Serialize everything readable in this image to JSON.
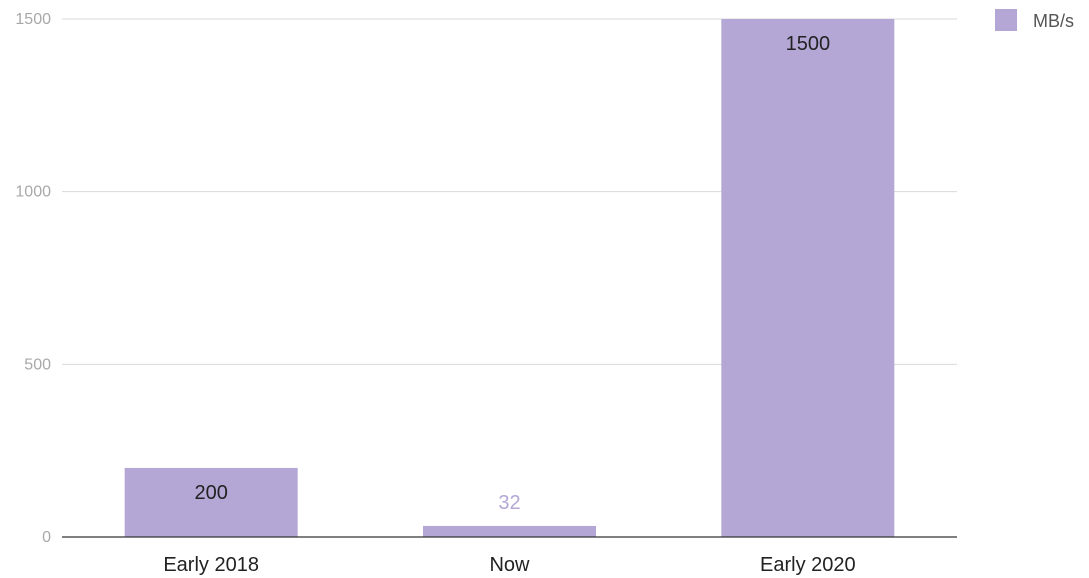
{
  "chart_data": {
    "type": "bar",
    "categories": [
      "Early 2018",
      "Now",
      "Early 2020"
    ],
    "series": [
      {
        "name": "MB/s",
        "values": [
          200,
          32,
          1500
        ],
        "color": "#b4a7d6"
      }
    ],
    "yticks": [
      "0",
      "500",
      "1000",
      "1500"
    ],
    "ylim": [
      0,
      1500
    ],
    "grid": true,
    "legend": "top-right",
    "colors": {
      "bar": "#b4a7d6",
      "inside_label": "#222222",
      "outside_label": "#b4a7d6"
    }
  }
}
